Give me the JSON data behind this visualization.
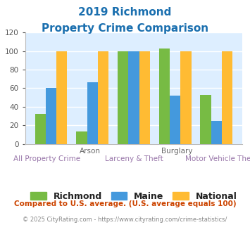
{
  "title_line1": "2019 Richmond",
  "title_line2": "Property Crime Comparison",
  "title_color": "#1a6faf",
  "categories": [
    "All Property Crime",
    "Arson",
    "Larceny & Theft",
    "Burglary",
    "Motor Vehicle Theft"
  ],
  "category_labels_top": [
    "",
    "Arson",
    "",
    "Burglary",
    ""
  ],
  "category_labels_bottom": [
    "All Property Crime",
    "",
    "Larceny & Theft",
    "",
    "Motor Vehicle Theft"
  ],
  "richmond_values": [
    32,
    13,
    100,
    103,
    53
  ],
  "maine_values": [
    60,
    66,
    100,
    52,
    25
  ],
  "national_values": [
    100,
    100,
    100,
    100,
    100
  ],
  "richmond_color": "#77bb44",
  "maine_color": "#4499dd",
  "national_color": "#ffbb33",
  "ylim": [
    0,
    120
  ],
  "yticks": [
    0,
    20,
    40,
    60,
    80,
    100,
    120
  ],
  "plot_bg_color": "#ddeeff",
  "grid_color": "#ffffff",
  "legend_labels": [
    "Richmond",
    "Maine",
    "National"
  ],
  "footnote1": "Compared to U.S. average. (U.S. average equals 100)",
  "footnote2": "© 2025 CityRating.com - https://www.cityrating.com/crime-statistics/",
  "footnote1_color": "#cc4400",
  "footnote2_color": "#888888",
  "top_label_color": "#666666",
  "bottom_label_color": "#9977aa"
}
